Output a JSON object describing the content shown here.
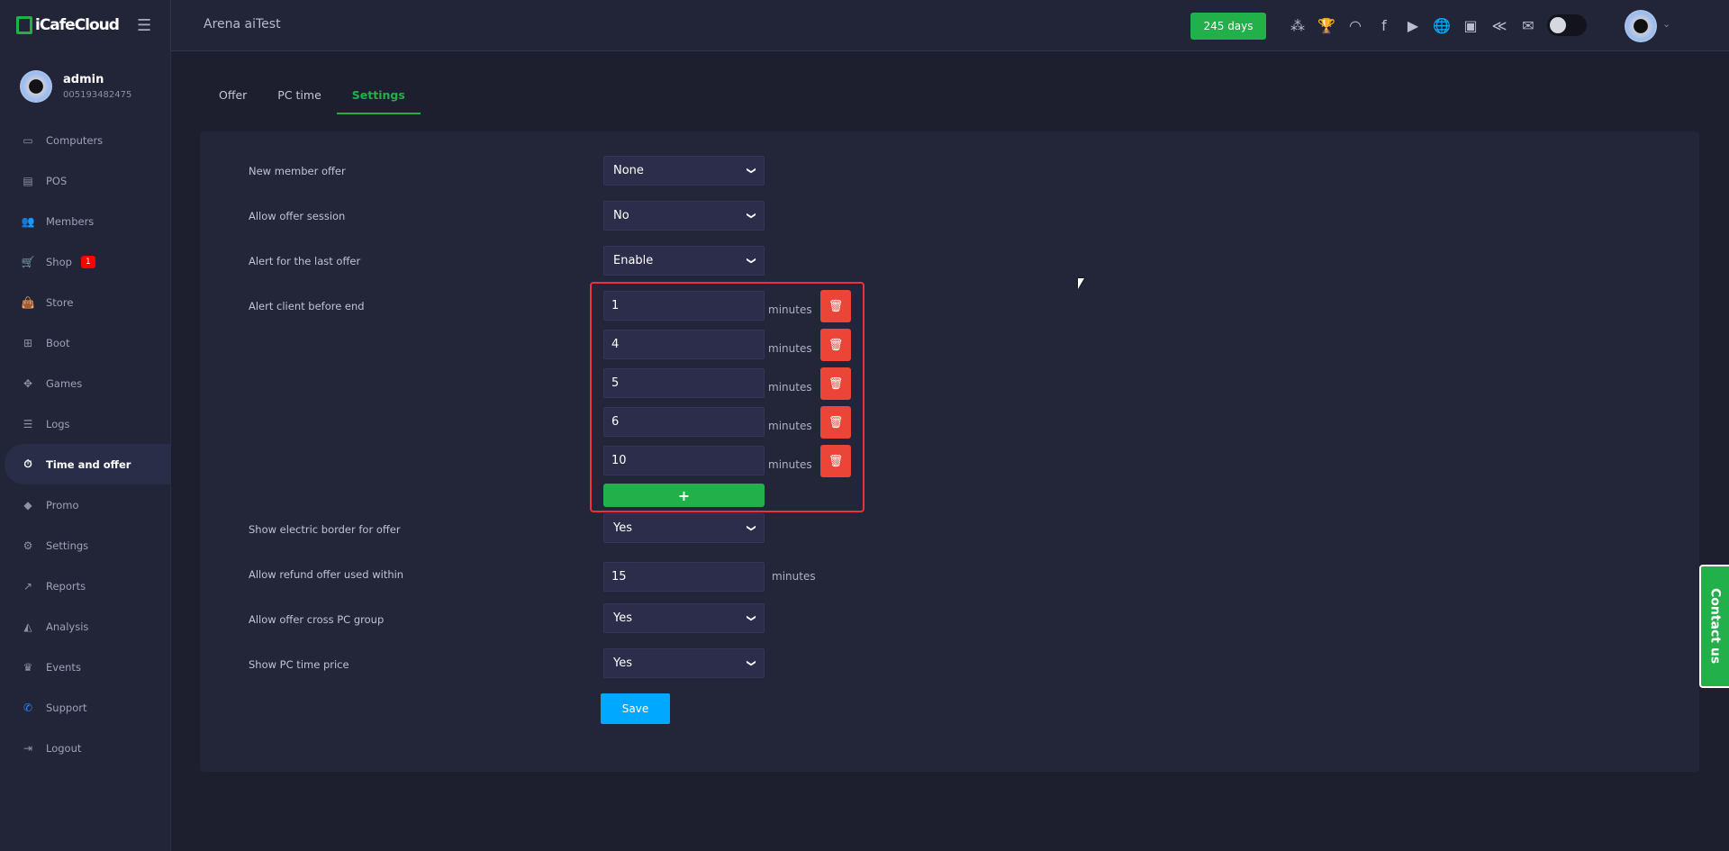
{
  "header": {
    "brand": "iCafeCloud",
    "cafe_name": "Arena aiTest",
    "license_days": "245 days",
    "icons": [
      "ranking-icon",
      "trophy-icon",
      "rss-icon",
      "facebook-icon",
      "youtube-icon",
      "globe-icon",
      "icafe-logo-icon",
      "brand-icon",
      "mail-icon"
    ],
    "theme_toggle": "off"
  },
  "user": {
    "name": "admin",
    "id": "005193482475"
  },
  "sidebar": {
    "items": [
      {
        "label": "Computers",
        "icon": "monitor-icon",
        "glyph": "▭"
      },
      {
        "label": "POS",
        "icon": "cash-register-icon",
        "glyph": "▤"
      },
      {
        "label": "Members",
        "icon": "users-icon",
        "glyph": "👥"
      },
      {
        "label": "Shop",
        "icon": "cart-icon",
        "glyph": "🛒",
        "badge": "1"
      },
      {
        "label": "Store",
        "icon": "bag-icon",
        "glyph": "👜"
      },
      {
        "label": "Boot",
        "icon": "windows-icon",
        "glyph": "⊞"
      },
      {
        "label": "Games",
        "icon": "gamepad-icon",
        "glyph": "✥"
      },
      {
        "label": "Logs",
        "icon": "list-icon",
        "glyph": "☰"
      },
      {
        "label": "Time and offer",
        "icon": "stopwatch-icon",
        "glyph": "⏱",
        "active": true
      },
      {
        "label": "Promo",
        "icon": "tag-icon",
        "glyph": "◆"
      },
      {
        "label": "Settings",
        "icon": "gear-icon",
        "glyph": "⚙"
      },
      {
        "label": "Reports",
        "icon": "line-chart-icon",
        "glyph": "↗"
      },
      {
        "label": "Analysis",
        "icon": "area-chart-icon",
        "glyph": "◭"
      },
      {
        "label": "Events",
        "icon": "crown-icon",
        "glyph": "♛"
      },
      {
        "label": "Support",
        "icon": "phone-icon",
        "glyph": "✆"
      },
      {
        "label": "Logout",
        "icon": "logout-icon",
        "glyph": "⇥"
      }
    ]
  },
  "tabs": [
    {
      "label": "Offer"
    },
    {
      "label": "PC time"
    },
    {
      "label": "Settings",
      "active": true
    }
  ],
  "settings": {
    "new_member_offer": {
      "label": "New member offer",
      "value": "None"
    },
    "allow_offer_session": {
      "label": "Allow offer session",
      "value": "No"
    },
    "alert_last_offer": {
      "label": "Alert for the last offer",
      "value": "Enable"
    },
    "alert_before_end": {
      "label": "Alert client before end",
      "unit": "minutes",
      "values": [
        "1",
        "4",
        "5",
        "6",
        "10"
      ],
      "add_label": "+"
    },
    "electric_border": {
      "label": "Show electric border for offer",
      "value": "Yes"
    },
    "refund_within": {
      "label": "Allow refund offer used within",
      "value": "15",
      "unit": "minutes"
    },
    "cross_pc_group": {
      "label": "Allow offer cross PC group",
      "value": "Yes"
    },
    "show_pc_time_price": {
      "label": "Show PC time price",
      "value": "Yes"
    },
    "save_label": "Save"
  },
  "contact_label": "Contact us",
  "colors": {
    "accent": "#22b04b",
    "danger": "#eb4537",
    "highlight": "#e8333b",
    "save": "#00a8ff"
  }
}
